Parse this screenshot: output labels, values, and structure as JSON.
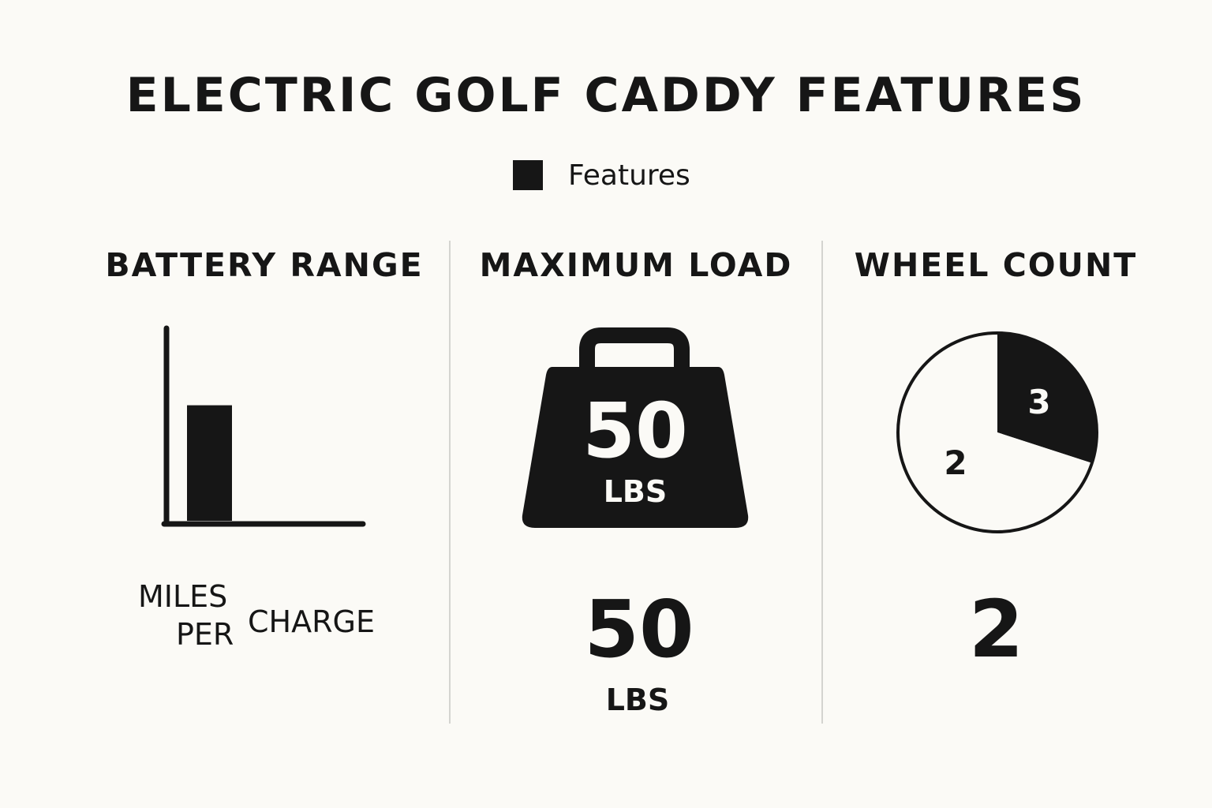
{
  "title": "ELECTRIC GOLF CADDY FEATURES",
  "legend": {
    "label": "Features",
    "color": "#161616"
  },
  "colors": {
    "ink": "#161616",
    "background": "#fbfaf6",
    "divider": "#d4d4d0"
  },
  "panels": {
    "battery": {
      "title": "BATTERY RANGE",
      "label_line1": "MILES",
      "label_line2": "PER",
      "label_line3": "CHARGE"
    },
    "load": {
      "title": "MAXIMUM LOAD",
      "icon": "kettlebell-weight-icon",
      "icon_value": "50",
      "icon_unit": "LBS",
      "value": "50",
      "unit": "LBS"
    },
    "wheels": {
      "title": "WHEEL COUNT",
      "value": "2"
    }
  },
  "chart_data": [
    {
      "type": "bar",
      "categories": [
        ""
      ],
      "values": [
        0.6
      ],
      "ylim": [
        0,
        1
      ],
      "grid": false,
      "xlabel": "",
      "ylabel": ""
    },
    {
      "type": "pie",
      "labels": [
        "3",
        "2"
      ],
      "values": [
        3,
        7
      ],
      "colors": [
        "#161616",
        "#fbfaf6"
      ]
    }
  ]
}
